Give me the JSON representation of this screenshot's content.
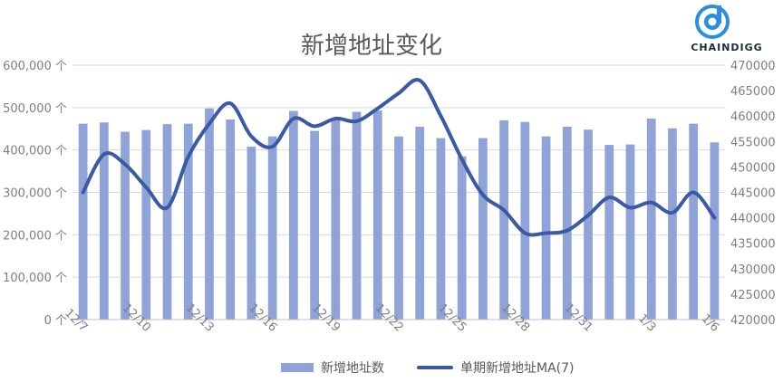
{
  "title": "新增地址变化",
  "logo": {
    "text": "CHAINDIGG"
  },
  "legend": {
    "bar_label": "新增地址数",
    "line_label": "单期新增地址MA(7)"
  },
  "colors": {
    "bar": "#8fa3d8",
    "line": "#3a5aa6",
    "grid": "#d9d9d9",
    "axis": "#bfbfbf"
  },
  "chart_data": {
    "type": "bar",
    "categories": [
      "12/7",
      "12/8",
      "12/9",
      "12/10",
      "12/11",
      "12/12",
      "12/13",
      "12/14",
      "12/15",
      "12/16",
      "12/17",
      "12/18",
      "12/19",
      "12/20",
      "12/21",
      "12/22",
      "12/23",
      "12/24",
      "12/25",
      "12/26",
      "12/27",
      "12/28",
      "12/29",
      "12/30",
      "12/31",
      "1/1",
      "1/2",
      "1/3",
      "1/4",
      "1/5",
      "1/6"
    ],
    "x_tick_labels": [
      "12/7",
      "12/10",
      "12/13",
      "12/16",
      "12/19",
      "12/22",
      "12/25",
      "12/28",
      "12/31",
      "1/3",
      "1/6"
    ],
    "series": [
      {
        "name": "新增地址数",
        "type": "bar",
        "axis": "left",
        "values": [
          462000,
          465000,
          443000,
          447000,
          461000,
          462000,
          498000,
          472000,
          408000,
          432000,
          492000,
          445000,
          470000,
          490000,
          493000,
          432000,
          455000,
          428000,
          385000,
          428000,
          470000,
          466000,
          432000,
          455000,
          448000,
          412000,
          413000,
          474000,
          451000,
          462000,
          418000
        ]
      },
      {
        "name": "单期新增地址MA(7)",
        "type": "line",
        "axis": "right",
        "values": [
          445000,
          452500,
          450500,
          446000,
          442000,
          452000,
          458500,
          462500,
          456000,
          454000,
          459500,
          458000,
          459500,
          459000,
          461500,
          464500,
          467000,
          460000,
          451500,
          444500,
          441500,
          437000,
          437000,
          437500,
          440500,
          444000,
          442000,
          443000,
          441000,
          445000,
          440000
        ]
      }
    ],
    "y_left": {
      "ylim": [
        0,
        600000
      ],
      "ticks": [
        "0 个",
        "100,000 个",
        "200,000 个",
        "300,000 个",
        "400,000 个",
        "500,000 个",
        "600,000 个"
      ]
    },
    "y_right": {
      "ylim": [
        420000,
        470000
      ],
      "ticks": [
        "420000",
        "425000",
        "430000",
        "435000",
        "440000",
        "445000",
        "450000",
        "455000",
        "460000",
        "465000",
        "470000"
      ]
    },
    "grid": true,
    "legend_position": "bottom"
  }
}
